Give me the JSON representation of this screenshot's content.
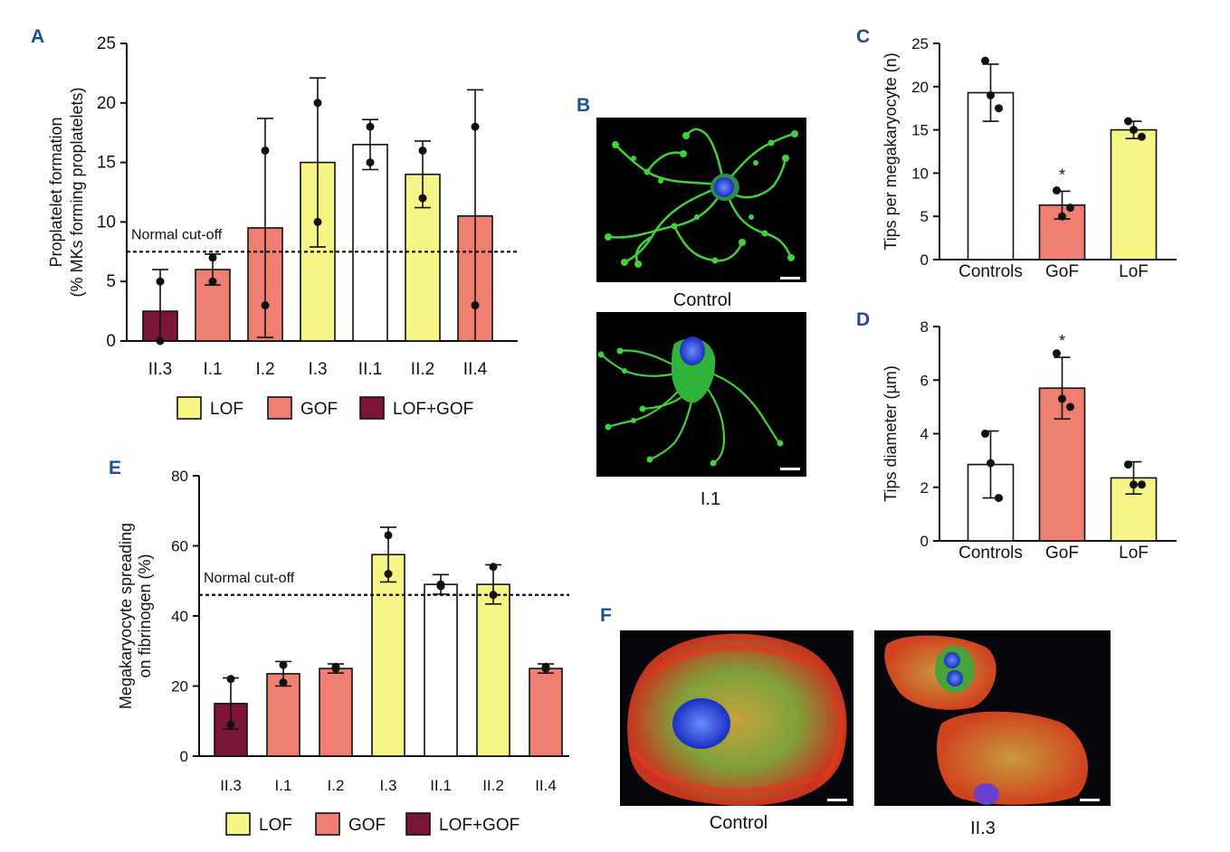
{
  "colors": {
    "lof": "#f7f585",
    "gof": "#ef7f72",
    "lofgof": "#7a1438",
    "control": "#ffffff",
    "axis": "#111111",
    "letter": "#1f4e8c"
  },
  "chart_data": [
    {
      "id": "A",
      "letter": "A",
      "type": "bar",
      "ylabel": [
        "Proplatelet formation",
        "(% MKs forming proplatelets)"
      ],
      "ylim": [
        0,
        25
      ],
      "ticks": [
        0,
        5,
        10,
        15,
        20,
        25
      ],
      "cutoff": {
        "value": 7.5,
        "label": "Normal cut-off"
      },
      "categories": [
        "II.3",
        "I.1",
        "I.2",
        "I.3",
        "II.1",
        "II.2",
        "II.4"
      ],
      "groups": [
        "lofgof",
        "gof",
        "gof",
        "lof",
        "control",
        "lof",
        "gof"
      ],
      "values": [
        2.5,
        6,
        9.5,
        15,
        16.5,
        14,
        10.5
      ],
      "errors": [
        3.5,
        1.3,
        9.2,
        7.1,
        2.1,
        2.8,
        10.6
      ],
      "points": [
        [
          5,
          0
        ],
        [
          7,
          5
        ],
        [
          16,
          3
        ],
        [
          20,
          10
        ],
        [
          18,
          15
        ],
        [
          16,
          12
        ],
        [
          18,
          3
        ]
      ],
      "legend": [
        {
          "label": "LOF",
          "group": "lof"
        },
        {
          "label": "GOF",
          "group": "gof"
        },
        {
          "label": "LOF+GOF",
          "group": "lofgof"
        }
      ]
    },
    {
      "id": "C",
      "letter": "C",
      "type": "bar",
      "ylabel": [
        "Tips per megakaryocyte (n)"
      ],
      "ylim": [
        0,
        25
      ],
      "ticks": [
        0,
        5,
        10,
        15,
        20,
        25
      ],
      "categories": [
        "Controls",
        "GoF",
        "LoF"
      ],
      "groups": [
        "control",
        "gof",
        "lof"
      ],
      "values": [
        19.3,
        6.3,
        15
      ],
      "errors": [
        3.3,
        1.6,
        1
      ],
      "points": [
        [
          23,
          19,
          17.5
        ],
        [
          8,
          5,
          6
        ],
        [
          16,
          15,
          14.2
        ]
      ],
      "stars": [
        "",
        "*",
        ""
      ]
    },
    {
      "id": "D",
      "letter": "D",
      "type": "bar",
      "ylabel": [
        "Tips diameter (µm)"
      ],
      "ylim": [
        0,
        8
      ],
      "ticks": [
        0,
        2,
        4,
        6,
        8
      ],
      "categories": [
        "Controls",
        "GoF",
        "LoF"
      ],
      "groups": [
        "control",
        "gof",
        "lof"
      ],
      "values": [
        2.85,
        5.7,
        2.35
      ],
      "errors": [
        1.25,
        1.15,
        0.6
      ],
      "points": [
        [
          4,
          2.9,
          1.6
        ],
        [
          7,
          5.3,
          5
        ],
        [
          2.85,
          2.1,
          2.1
        ]
      ],
      "stars": [
        "",
        "*",
        ""
      ]
    },
    {
      "id": "E",
      "letter": "E",
      "type": "bar",
      "ylabel": [
        "Megakaryocyte spreading",
        "on fibrinogen (%)"
      ],
      "ylim": [
        0,
        80
      ],
      "ticks": [
        0,
        20,
        40,
        60,
        80
      ],
      "cutoff": {
        "value": 46,
        "label": "Normal cut-off"
      },
      "categories": [
        "II.3",
        "I.1",
        "I.2",
        "I.3",
        "II.1",
        "II.2",
        "II.4"
      ],
      "groups": [
        "lofgof",
        "gof",
        "gof",
        "lof",
        "control",
        "lof",
        "gof"
      ],
      "values": [
        15,
        23.5,
        25,
        57.5,
        49,
        49,
        25
      ],
      "errors": [
        7.3,
        3.5,
        1.3,
        7.8,
        2.8,
        5.6,
        1.3
      ],
      "points": [
        [
          22,
          9
        ],
        [
          26,
          21
        ],
        [
          25.5,
          25
        ],
        [
          63,
          52
        ],
        [
          49,
          48.5
        ],
        [
          54,
          46
        ],
        [
          25.5,
          25
        ]
      ],
      "legend": [
        {
          "label": "LOF",
          "group": "lof"
        },
        {
          "label": "GOF",
          "group": "gof"
        },
        {
          "label": "LOF+GOF",
          "group": "lofgof"
        }
      ]
    }
  ],
  "images": {
    "B": {
      "letter": "B",
      "captions": [
        "Control",
        "I.1"
      ]
    },
    "F": {
      "letter": "F",
      "captions": [
        "Control",
        "II.3"
      ]
    }
  }
}
